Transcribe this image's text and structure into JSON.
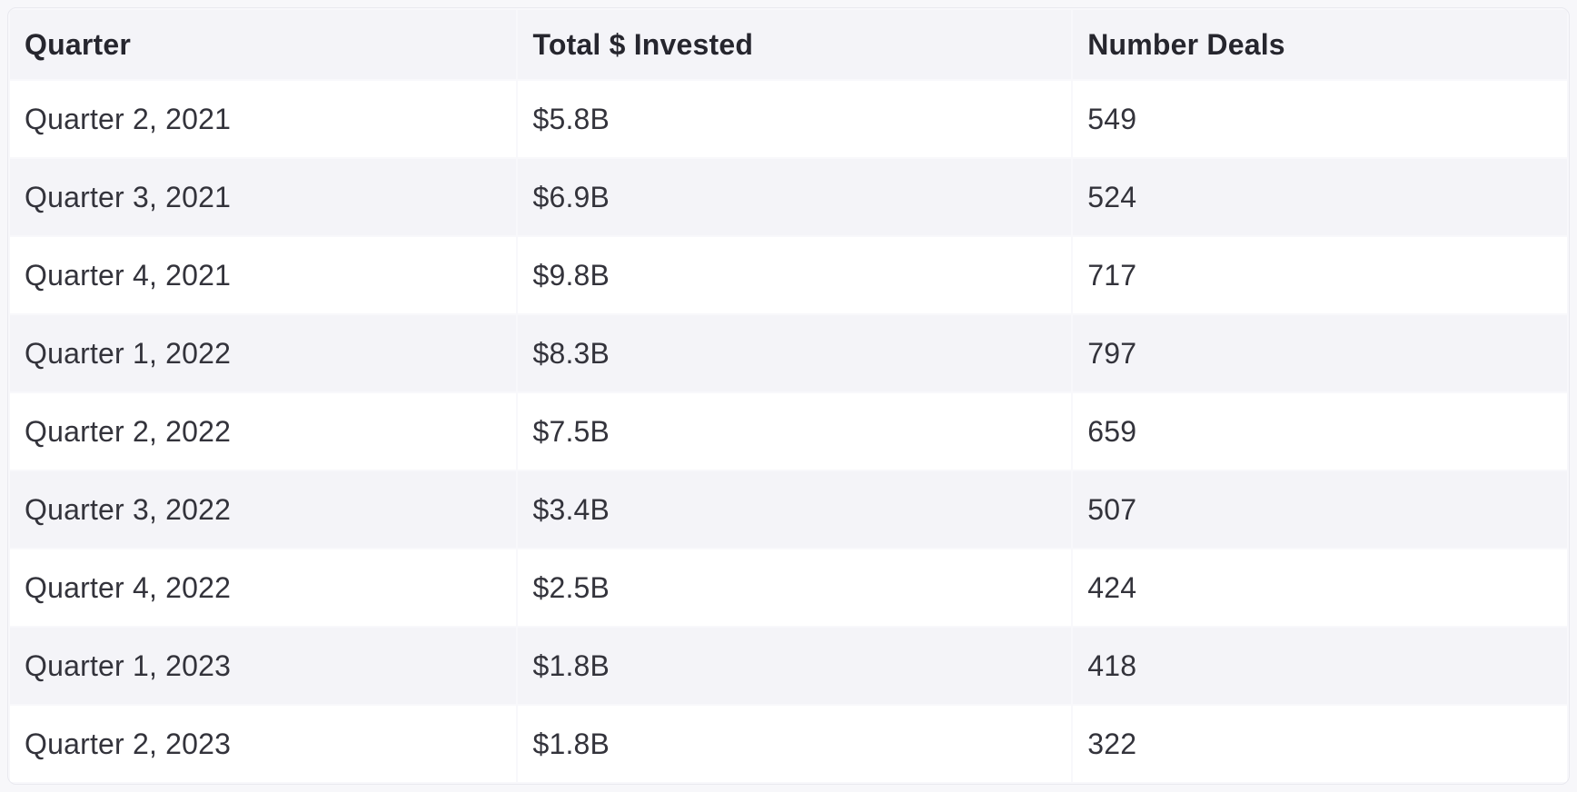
{
  "table": {
    "columns": [
      {
        "key": "quarter",
        "label": "Quarter"
      },
      {
        "key": "invested",
        "label": "Total $ Invested"
      },
      {
        "key": "deals",
        "label": "Number Deals"
      }
    ],
    "rows": [
      {
        "quarter": "Quarter 2, 2021",
        "invested": "$5.8B",
        "deals": "549"
      },
      {
        "quarter": "Quarter 3, 2021",
        "invested": "$6.9B",
        "deals": "524"
      },
      {
        "quarter": "Quarter 4, 2021",
        "invested": "$9.8B",
        "deals": "717"
      },
      {
        "quarter": "Quarter 1, 2022",
        "invested": "$8.3B",
        "deals": "797"
      },
      {
        "quarter": "Quarter 2, 2022",
        "invested": "$7.5B",
        "deals": "659"
      },
      {
        "quarter": "Quarter 3, 2022",
        "invested": "$3.4B",
        "deals": "507"
      },
      {
        "quarter": "Quarter 4, 2022",
        "invested": "$2.5B",
        "deals": "424"
      },
      {
        "quarter": "Quarter 1, 2023",
        "invested": "$1.8B",
        "deals": "418"
      },
      {
        "quarter": "Quarter 2, 2023",
        "invested": "$1.8B",
        "deals": "322"
      }
    ]
  },
  "chart_data": {
    "type": "table",
    "title": "",
    "columns": [
      "Quarter",
      "Total $ Invested",
      "Number Deals"
    ],
    "categories": [
      "Quarter 2, 2021",
      "Quarter 3, 2021",
      "Quarter 4, 2021",
      "Quarter 1, 2022",
      "Quarter 2, 2022",
      "Quarter 3, 2022",
      "Quarter 4, 2022",
      "Quarter 1, 2023",
      "Quarter 2, 2023"
    ],
    "series": [
      {
        "name": "Total $ Invested ($B)",
        "values": [
          5.8,
          6.9,
          9.8,
          8.3,
          7.5,
          3.4,
          2.5,
          1.8,
          1.8
        ]
      },
      {
        "name": "Number Deals",
        "values": [
          549,
          524,
          717,
          797,
          659,
          507,
          424,
          418,
          322
        ]
      }
    ],
    "rows": [
      [
        "Quarter 2, 2021",
        "$5.8B",
        549
      ],
      [
        "Quarter 3, 2021",
        "$6.9B",
        524
      ],
      [
        "Quarter 4, 2021",
        "$9.8B",
        717
      ],
      [
        "Quarter 1, 2022",
        "$8.3B",
        797
      ],
      [
        "Quarter 2, 2022",
        "$7.5B",
        659
      ],
      [
        "Quarter 3, 2022",
        "$3.4B",
        507
      ],
      [
        "Quarter 4, 2022",
        "$2.5B",
        424
      ],
      [
        "Quarter 1, 2023",
        "$1.8B",
        418
      ],
      [
        "Quarter 2, 2023",
        "$1.8B",
        322
      ]
    ]
  },
  "colors": {
    "page_background": "#f7f7fa",
    "card_background": "#f8f8fb",
    "card_border": "#e9e9ef",
    "header_background": "#f4f4f8",
    "row_odd_background": "#ffffff",
    "row_even_background": "#f4f4f8",
    "header_text": "#26262e",
    "cell_text": "#33333b"
  }
}
